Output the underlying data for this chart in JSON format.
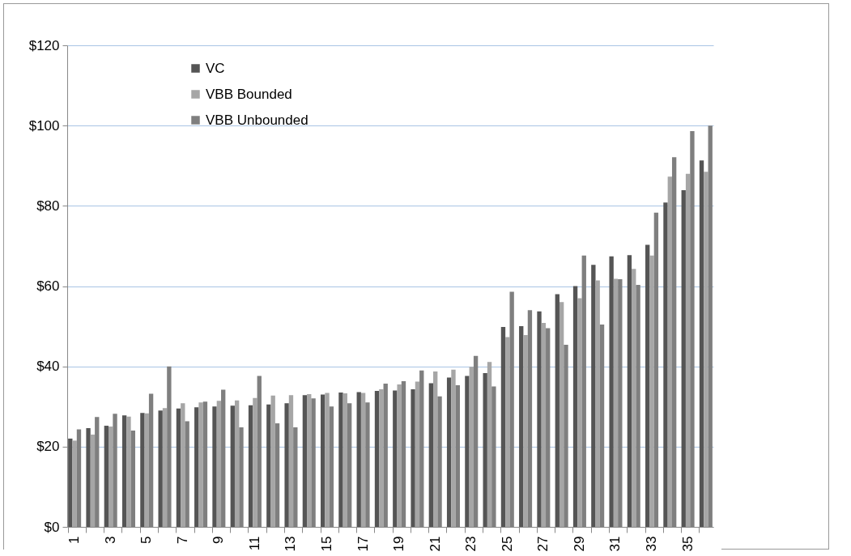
{
  "chart_data": {
    "type": "bar",
    "categories": [
      "1",
      null,
      "3",
      null,
      "5",
      null,
      "7",
      null,
      "9",
      null,
      "11",
      null,
      "13",
      null,
      "15",
      null,
      "17",
      null,
      "19",
      null,
      "21",
      null,
      "23",
      null,
      "25",
      null,
      "27",
      null,
      "29",
      null,
      "31",
      null,
      "33",
      null,
      "35",
      null
    ],
    "series": [
      {
        "name": "VC",
        "color": "#555555",
        "values": [
          22,
          24.6,
          25.2,
          27.8,
          28.4,
          29,
          29.5,
          29.8,
          30,
          30.2,
          30.3,
          30.5,
          30.8,
          32.8,
          33,
          33.5,
          33.6,
          33.9,
          34,
          34.3,
          35.8,
          37.2,
          37.6,
          38.3,
          49.8,
          50,
          53.7,
          58,
          60,
          65.3,
          67.4,
          67.7,
          70.3,
          80.8,
          83.9,
          91.3
        ]
      },
      {
        "name": "VBB Bounded",
        "color": "#a6a6a6",
        "values": [
          21.5,
          23,
          25,
          27.5,
          28.3,
          29.6,
          30.8,
          31,
          31.4,
          31.5,
          32.1,
          32.7,
          32.8,
          33.1,
          33.4,
          33.3,
          33.4,
          34.3,
          35.5,
          36.2,
          38.7,
          39.2,
          39.9,
          41.1,
          47.3,
          47.8,
          50.8,
          56,
          57,
          61.4,
          61.8,
          64.3,
          67.6,
          87.3,
          88,
          88.5
        ]
      },
      {
        "name": "VBB Unbounded",
        "color": "#7f7f7f",
        "values": [
          24.3,
          27.4,
          28.2,
          24,
          33.2,
          40,
          26.3,
          31.2,
          34.2,
          24.8,
          37.6,
          25.8,
          24.8,
          32,
          30,
          30.8,
          31,
          35.7,
          36.3,
          39,
          32.5,
          35.3,
          42.6,
          35,
          58.6,
          54,
          49.5,
          45.4,
          67.6,
          50.4,
          61.7,
          60.3,
          78.3,
          92.1,
          98.6,
          100
        ]
      }
    ],
    "ylim": [
      0,
      120
    ],
    "yticks": [
      {
        "value": 0,
        "label": "$0"
      },
      {
        "value": 20,
        "label": "$20"
      },
      {
        "value": 40,
        "label": "$40"
      },
      {
        "value": 60,
        "label": "$60"
      },
      {
        "value": 80,
        "label": "$80"
      },
      {
        "value": 100,
        "label": "$100"
      },
      {
        "value": 120,
        "label": "$120"
      }
    ],
    "grid": "y",
    "legend": "top left"
  }
}
